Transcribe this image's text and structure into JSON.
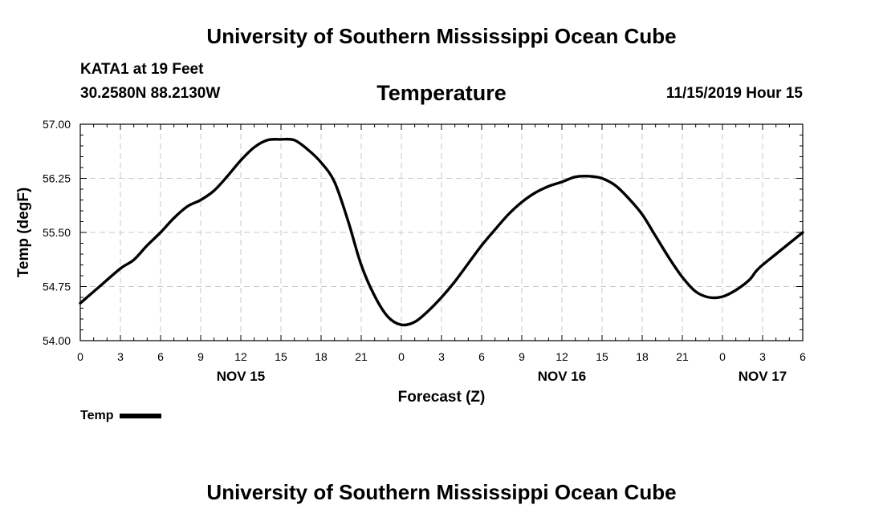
{
  "header": {
    "banner_top": "University of Southern Mississippi Ocean Cube",
    "banner_bottom": "University of Southern Mississippi Ocean Cube",
    "station_name": "KATA1 at 19 Feet",
    "station_coords": "30.2580N 88.2130W",
    "run_time": "11/15/2019 Hour 15"
  },
  "legend": {
    "label": "Temp"
  },
  "colors": {
    "line": "#000000",
    "grid": "#c8c8c8",
    "axis": "#000000",
    "background": "#ffffff"
  },
  "chart_data": {
    "type": "line",
    "title": "Temperature",
    "xlabel": "Forecast (Z)",
    "ylabel": "Temp (degF)",
    "xlim": [
      0,
      54
    ],
    "ylim": [
      54.0,
      57.0
    ],
    "grid": true,
    "x_ticks": [
      0,
      3,
      6,
      9,
      12,
      15,
      18,
      21,
      24,
      27,
      30,
      33,
      36,
      39,
      42,
      45,
      48,
      51,
      54
    ],
    "x_tick_labels": [
      "0",
      "3",
      "6",
      "9",
      "12",
      "15",
      "18",
      "21",
      "0",
      "3",
      "6",
      "9",
      "12",
      "15",
      "18",
      "21",
      "0",
      "3",
      "6"
    ],
    "y_ticks": [
      54.0,
      54.75,
      55.5,
      56.25,
      57.0
    ],
    "y_tick_labels": [
      "54.00",
      "54.75",
      "55.50",
      "56.25",
      "57.00"
    ],
    "date_labels": [
      {
        "x": 12,
        "label": "NOV 15"
      },
      {
        "x": 36,
        "label": "NOV 16"
      },
      {
        "x": 51,
        "label": "NOV 17"
      }
    ],
    "series": [
      {
        "name": "Temp",
        "x": [
          0,
          1.5,
          3,
          4,
          5,
          6,
          7,
          8,
          9,
          10,
          11,
          12,
          13,
          14,
          15,
          16,
          17,
          18,
          19,
          20,
          21,
          22,
          23,
          24,
          25,
          26,
          27,
          28,
          29,
          30,
          31,
          32,
          33,
          34,
          35,
          36,
          37,
          38,
          39,
          40,
          41,
          42,
          43,
          44,
          45,
          46,
          47,
          48,
          49,
          50,
          50.5,
          51,
          52,
          53,
          54
        ],
        "values": [
          54.52,
          54.76,
          55.0,
          55.12,
          55.32,
          55.5,
          55.7,
          55.86,
          55.95,
          56.08,
          56.28,
          56.5,
          56.68,
          56.78,
          56.79,
          56.78,
          56.65,
          56.47,
          56.2,
          55.67,
          55.05,
          54.62,
          54.33,
          54.22,
          54.26,
          54.41,
          54.6,
          54.82,
          55.07,
          55.32,
          55.54,
          55.75,
          55.92,
          56.05,
          56.14,
          56.2,
          56.27,
          56.28,
          56.25,
          56.15,
          55.97,
          55.75,
          55.45,
          55.15,
          54.88,
          54.68,
          54.6,
          54.61,
          54.7,
          54.84,
          54.96,
          55.05,
          55.2,
          55.35,
          55.5
        ]
      }
    ]
  }
}
